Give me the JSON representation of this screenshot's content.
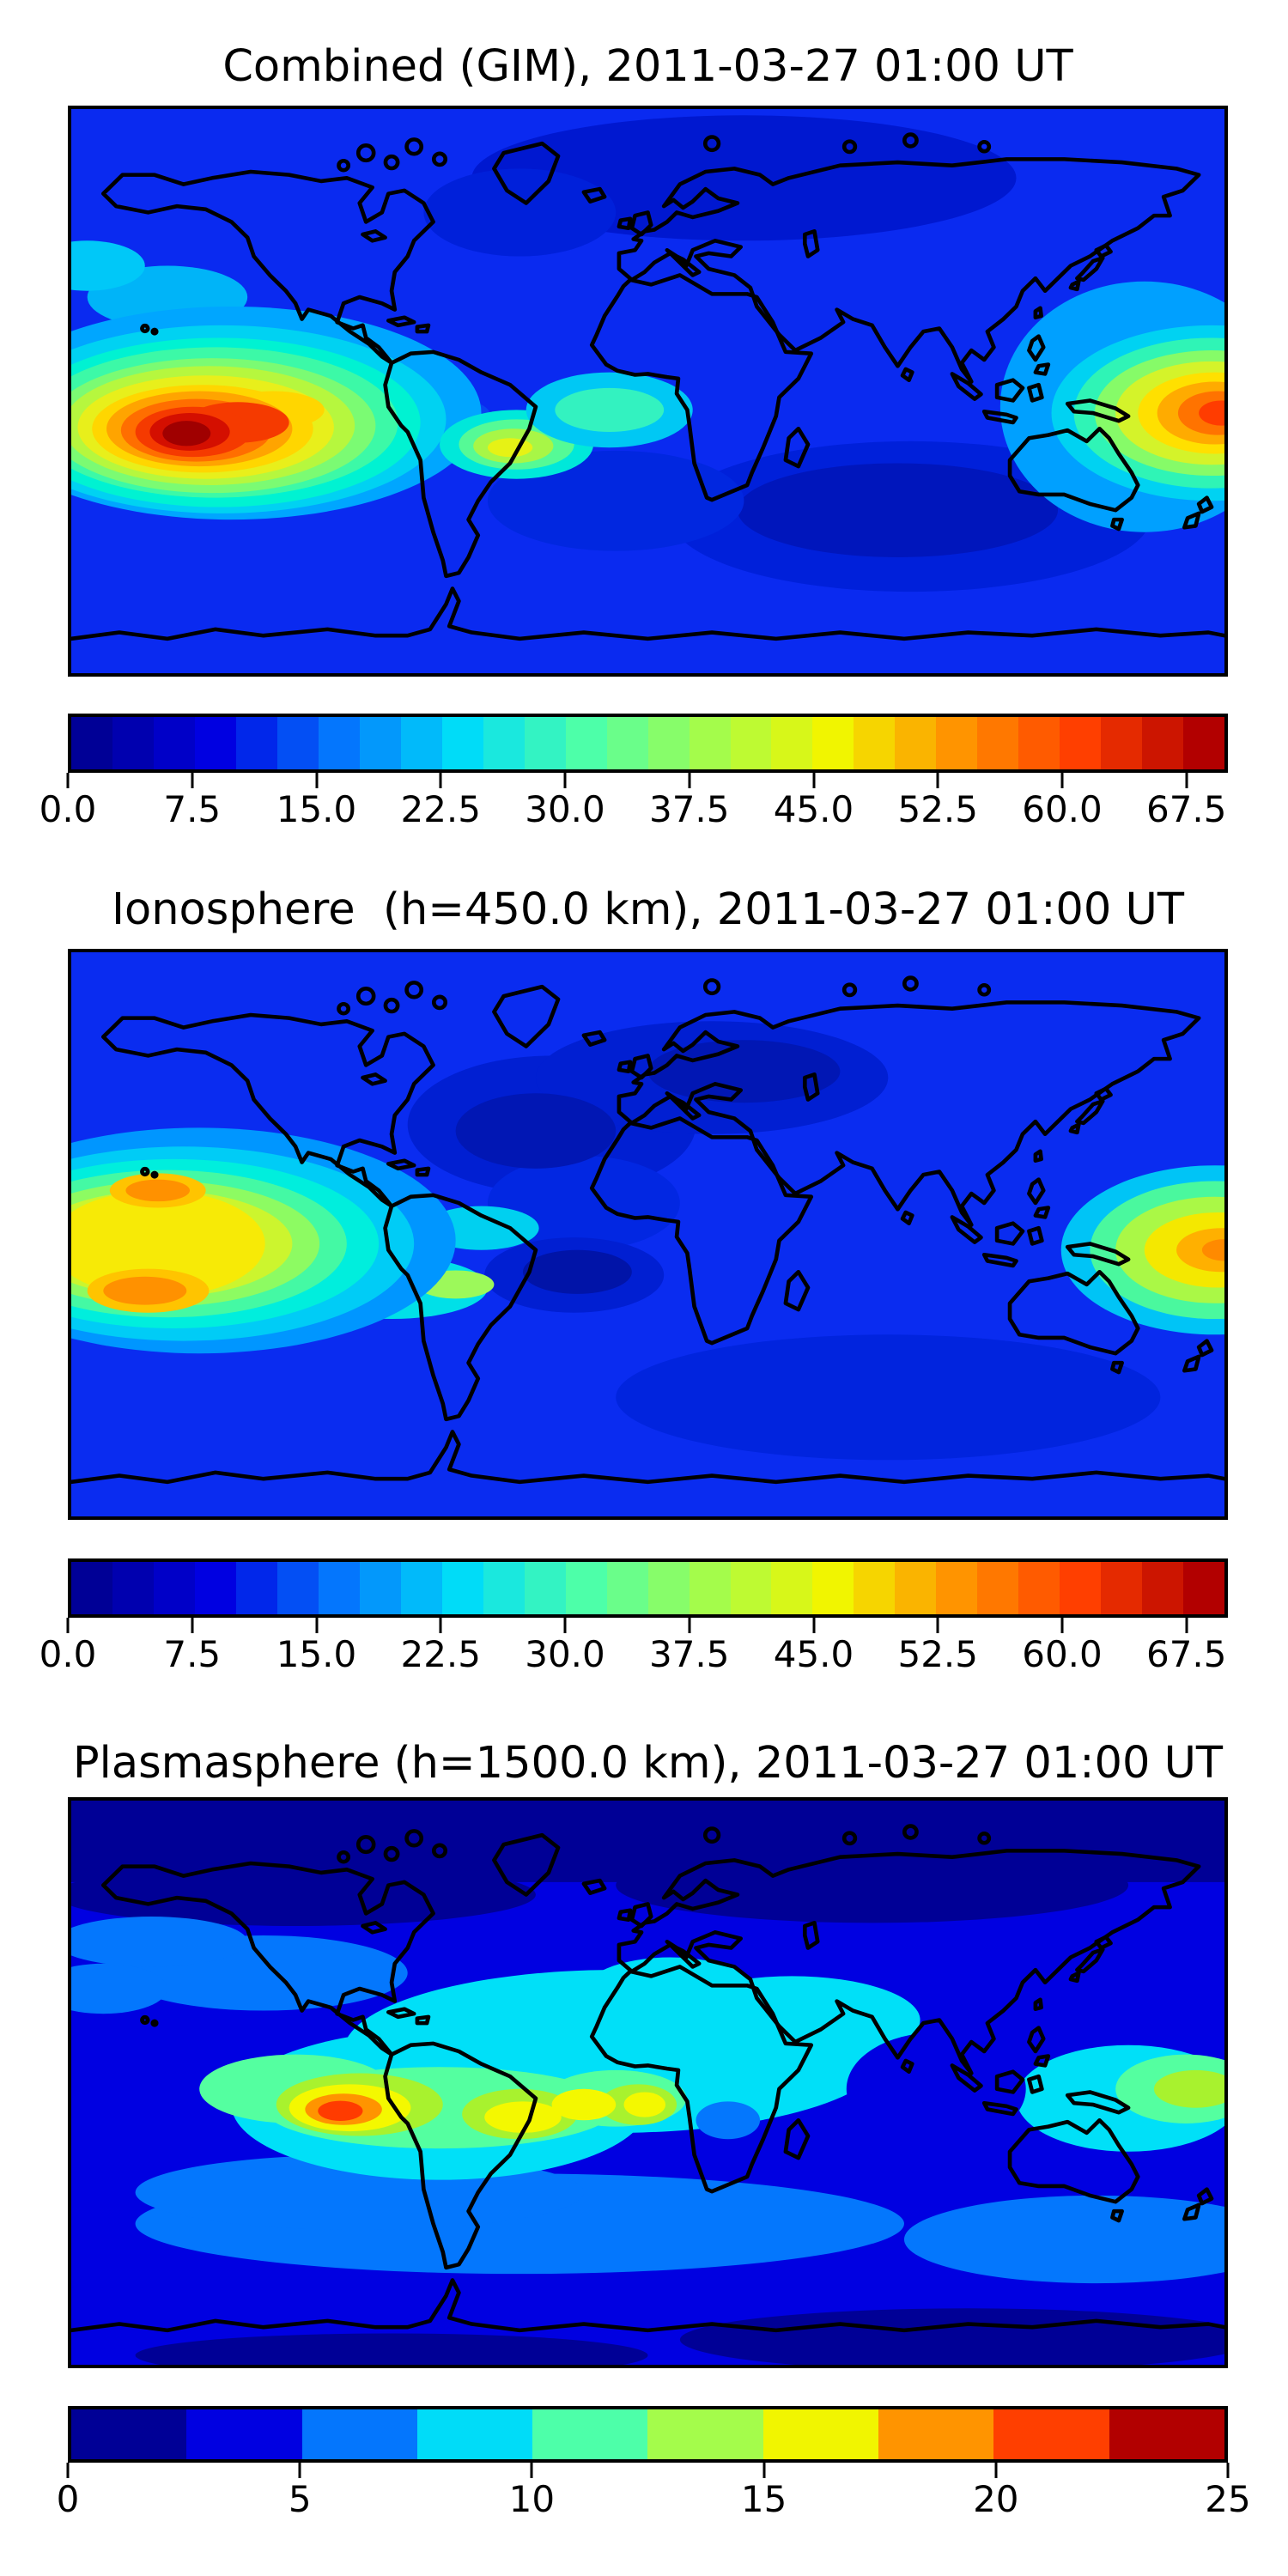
{
  "page": {
    "background": "#ffffff",
    "figure_kind": "matplotlib-style stacked contour maps"
  },
  "colormap": {
    "name": "jet",
    "anchors": [
      "#000096",
      "#0000e1",
      "#0476fd",
      "#00dcf8",
      "#4dffa9",
      "#a4fc4b",
      "#f1f500",
      "#ff9400",
      "#ff3f00",
      "#b20000"
    ]
  },
  "panels": [
    {
      "id": "combined",
      "title": "Combined (GIM), 2011-03-27 01:00 UT",
      "colorbar": {
        "min": 0,
        "max": 70,
        "segments": 28,
        "ticks": [
          {
            "value": 0,
            "label": "0.0"
          },
          {
            "value": 7.5,
            "label": "7.5"
          },
          {
            "value": 15,
            "label": "15.0"
          },
          {
            "value": 22.5,
            "label": "22.5"
          },
          {
            "value": 30,
            "label": "30.0"
          },
          {
            "value": 37.5,
            "label": "37.5"
          },
          {
            "value": 45,
            "label": "45.0"
          },
          {
            "value": 52.5,
            "label": "52.5"
          },
          {
            "value": 60,
            "label": "60.0"
          },
          {
            "value": 67.5,
            "label": "67.5"
          }
        ]
      }
    },
    {
      "id": "ionosphere",
      "title": "Ionosphere  (h=450.0 km), 2011-03-27 01:00 UT",
      "colorbar": {
        "min": 0,
        "max": 70,
        "segments": 28,
        "ticks": [
          {
            "value": 0,
            "label": "0.0"
          },
          {
            "value": 7.5,
            "label": "7.5"
          },
          {
            "value": 15,
            "label": "15.0"
          },
          {
            "value": 22.5,
            "label": "22.5"
          },
          {
            "value": 30,
            "label": "30.0"
          },
          {
            "value": 37.5,
            "label": "37.5"
          },
          {
            "value": 45,
            "label": "45.0"
          },
          {
            "value": 52.5,
            "label": "52.5"
          },
          {
            "value": 60,
            "label": "60.0"
          },
          {
            "value": 67.5,
            "label": "67.5"
          }
        ]
      }
    },
    {
      "id": "plasmasphere",
      "title": "Plasmasphere (h=1500.0 km), 2011-03-27 01:00 UT",
      "colorbar": {
        "min": 0,
        "max": 25,
        "segments": 10,
        "ticks": [
          {
            "value": 0,
            "label": "0"
          },
          {
            "value": 5,
            "label": "5"
          },
          {
            "value": 10,
            "label": "10"
          },
          {
            "value": 15,
            "label": "15"
          },
          {
            "value": 20,
            "label": "20"
          },
          {
            "value": 25,
            "label": "25"
          }
        ]
      }
    }
  ],
  "chart_data": [
    {
      "type": "heatmap",
      "subtype": "filled contour map of total electron content over world coastlines",
      "title": "Combined (GIM), 2011-03-27 01:00 UT",
      "projection": "equirectangular",
      "lon_range": [
        -180,
        180
      ],
      "lat_range": [
        -90,
        90
      ],
      "colormap": "jet",
      "value_range": [
        0,
        70
      ],
      "contour_interval": 2.5,
      "colorbar_ticks": [
        0.0,
        7.5,
        15.0,
        22.5,
        30.0,
        37.5,
        45.0,
        52.5,
        60.0,
        67.5
      ],
      "legend_position": "horizontal colorbar below map",
      "grid": false,
      "features": [
        {
          "name": "primary equatorial maximum, central-east Pacific",
          "lon": -133,
          "lat": -14,
          "value": 70
        },
        {
          "name": "secondary maximum, far west Pacific at dateline",
          "lon": 178,
          "lat": -11,
          "value": 60
        },
        {
          "name": "equatorial crest over eastern South America",
          "lon": -43,
          "lat": -20,
          "value": 45
        },
        {
          "name": "teal equatorial band over Atlantic",
          "lon": -12,
          "lat": -4,
          "value": 32
        },
        {
          "name": "minimum over northern Eurasia",
          "lon": 45,
          "lat": 60,
          "value": 5
        },
        {
          "name": "minimum over south Indian Ocean",
          "lon": 80,
          "lat": -40,
          "value": 7.5
        }
      ]
    },
    {
      "type": "heatmap",
      "subtype": "filled contour map of ionospheric electron content",
      "title": "Ionosphere  (h=450.0 km), 2011-03-27 01:00 UT",
      "projection": "equirectangular",
      "lon_range": [
        -180,
        180
      ],
      "lat_range": [
        -90,
        90
      ],
      "colormap": "jet",
      "value_range": [
        0,
        70
      ],
      "contour_interval": 2.5,
      "colorbar_ticks": [
        0.0,
        7.5,
        15.0,
        22.5,
        30.0,
        37.5,
        45.0,
        52.5,
        60.0,
        67.5
      ],
      "legend_position": "horizontal colorbar below map",
      "grid": false,
      "features": [
        {
          "name": "northern crest lobe, central Pacific",
          "lon": -157,
          "lat": 16,
          "value": 55
        },
        {
          "name": "southern crest lobe, central Pacific",
          "lon": -157,
          "lat": -18,
          "value": 57.5
        },
        {
          "name": "maximum at far west Pacific edge",
          "lon": 179,
          "lat": -12,
          "value": 50
        },
        {
          "name": "deep minimum over North Atlantic / Europe",
          "lon": -25,
          "lat": 40,
          "value": 2.5
        },
        {
          "name": "deep minimum over central South America",
          "lon": -58,
          "lat": -14,
          "value": 2.5
        }
      ]
    },
    {
      "type": "heatmap",
      "subtype": "filled contour map of plasmaspheric electron content",
      "title": "Plasmasphere (h=1500.0 km), 2011-03-27 01:00 UT",
      "projection": "equirectangular",
      "lon_range": [
        -180,
        180
      ],
      "lat_range": [
        -90,
        90
      ],
      "colormap": "jet",
      "value_range": [
        0,
        25
      ],
      "contour_interval": 2.5,
      "colorbar_ticks": [
        0,
        5,
        10,
        15,
        20,
        25
      ],
      "legend_position": "horizontal colorbar below map",
      "grid": false,
      "features": [
        {
          "name": "peak west of South America",
          "lon": -95,
          "lat": -8,
          "value": 22.5
        },
        {
          "name": "yellow enhancement over central Brazil",
          "lon": -52,
          "lat": -11,
          "value": 17.5
        },
        {
          "name": "yellow enhancement over equatorial mid-Atlantic",
          "lon": -20,
          "lat": -6,
          "value": 17.5
        },
        {
          "name": "yellow-green spot off west Africa",
          "lon": -2,
          "lat": -8,
          "value": 16
        },
        {
          "name": "green-yellow spot east of New Guinea",
          "lon": 168,
          "lat": -2,
          "value": 15
        },
        {
          "name": "cyan equatorial belt",
          "lon": 0,
          "lat": 0,
          "value": 10
        },
        {
          "name": "polar minima bands",
          "lon": 0,
          "lat": 75,
          "value": 2.5
        }
      ]
    }
  ]
}
